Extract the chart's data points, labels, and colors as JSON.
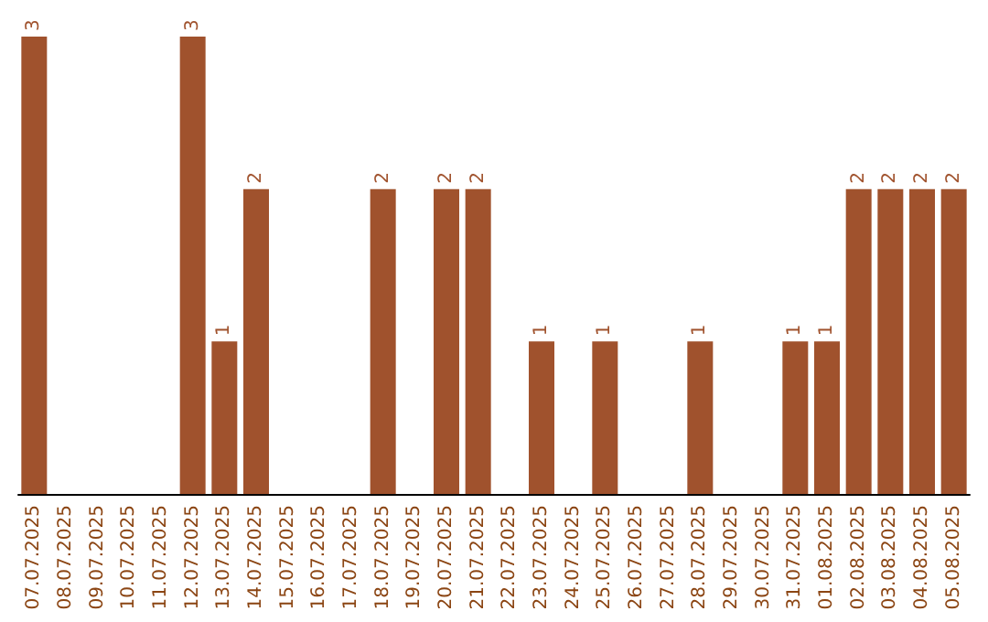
{
  "chart_data": {
    "type": "bar",
    "categories": [
      "07.07.2025",
      "08.07.2025",
      "09.07.2025",
      "10.07.2025",
      "11.07.2025",
      "12.07.2025",
      "13.07.2025",
      "14.07.2025",
      "15.07.2025",
      "16.07.2025",
      "17.07.2025",
      "18.07.2025",
      "19.07.2025",
      "20.07.2025",
      "21.07.2025",
      "22.07.2025",
      "23.07.2025",
      "24.07.2025",
      "25.07.2025",
      "26.07.2025",
      "27.07.2025",
      "28.07.2025",
      "29.07.2025",
      "30.07.2025",
      "31.07.2025",
      "01.08.2025",
      "02.08.2025",
      "03.08.2025",
      "04.08.2025",
      "05.08.2025"
    ],
    "values": [
      3,
      0,
      0,
      0,
      0,
      3,
      1,
      2,
      0,
      0,
      0,
      2,
      0,
      2,
      2,
      0,
      1,
      0,
      1,
      0,
      0,
      1,
      0,
      0,
      1,
      1,
      2,
      2,
      2,
      2
    ],
    "value_labels": [
      "3",
      null,
      null,
      null,
      null,
      "3",
      "1",
      "2",
      null,
      null,
      null,
      "2",
      null,
      "2",
      "2",
      null,
      "1",
      null,
      "1",
      null,
      null,
      "1",
      null,
      null,
      "1",
      "1",
      "2",
      "2",
      "2",
      "2"
    ],
    "color": "#a0522d"
  }
}
